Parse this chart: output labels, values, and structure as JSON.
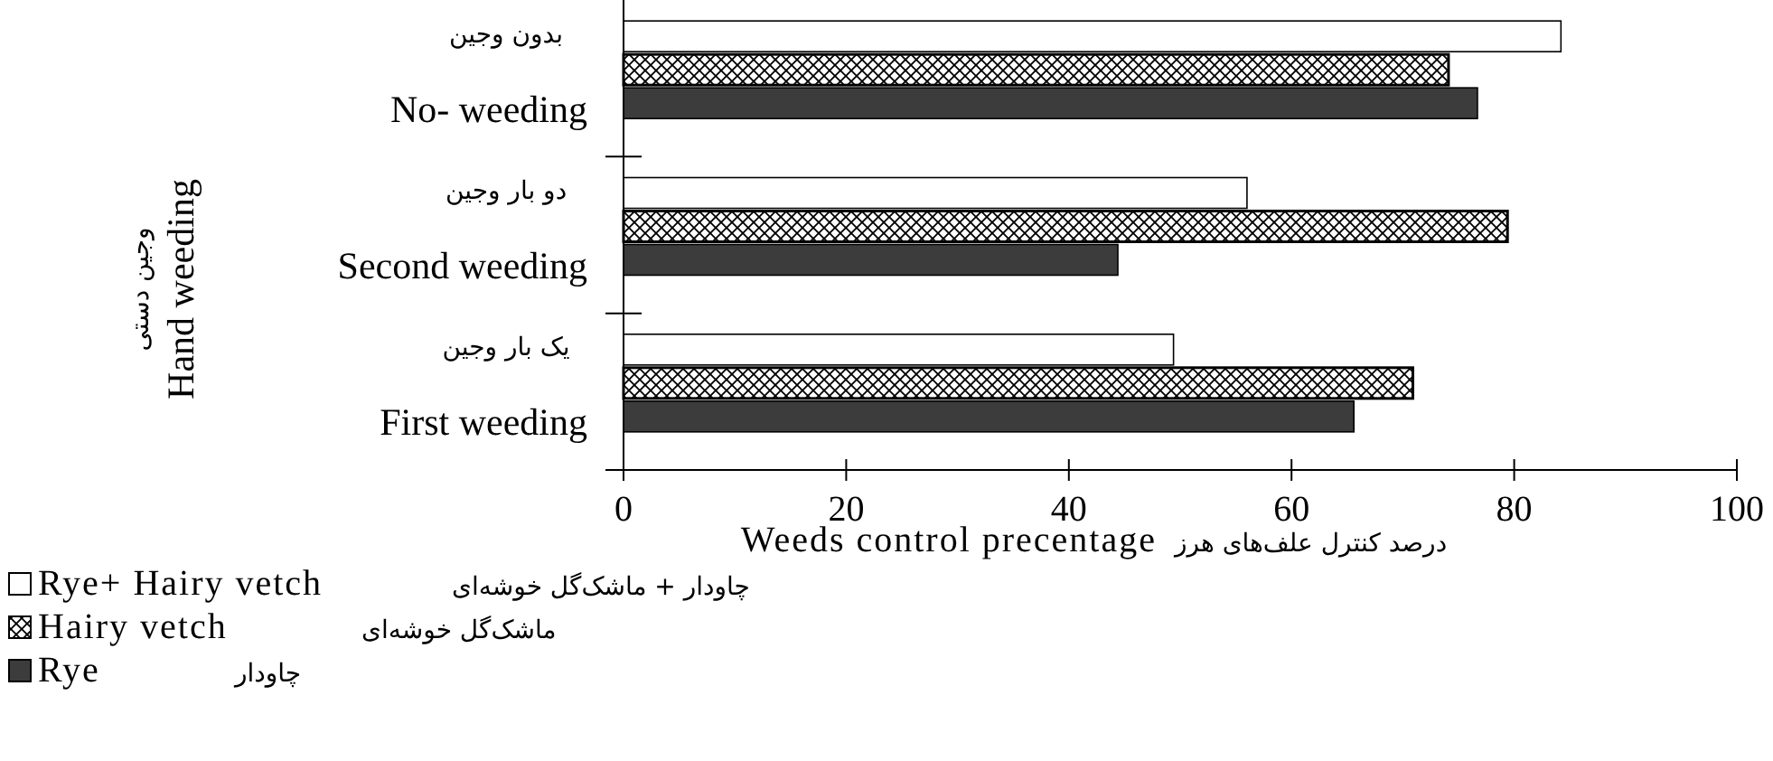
{
  "chart_data": {
    "type": "bar",
    "orientation": "horizontal",
    "categories": [
      "No- weeding",
      "Second weeding",
      "First weeding"
    ],
    "xlabel": "Weeds control precentage",
    "ylabel": "Hand weeding",
    "xlim": [
      0,
      100
    ],
    "xticks": [
      0,
      20,
      40,
      60,
      80,
      100
    ],
    "legend": "bottom left",
    "annotations": [
      "بدون وجین",
      "دو بار وجین",
      "یک بار وجین",
      "وجین دستی",
      "درصد کنترل علف‌های هرز",
      "چاودار + ماشک‌گل خوشه‌ای",
      "ماشک‌گل خوشه‌ای",
      "چاودار"
    ],
    "series": [
      {
        "name": "Rye+ Hairy vetch",
        "color": "#ffffff",
        "values": [
          84.2,
          56.0,
          49.4
        ]
      },
      {
        "name": "Hairy vetch",
        "color": "#000000",
        "values": [
          74.1,
          79.4,
          70.9
        ]
      },
      {
        "name": "Rye",
        "color": "#3c3c3c",
        "values": [
          76.7,
          44.4,
          65.6
        ]
      }
    ]
  }
}
